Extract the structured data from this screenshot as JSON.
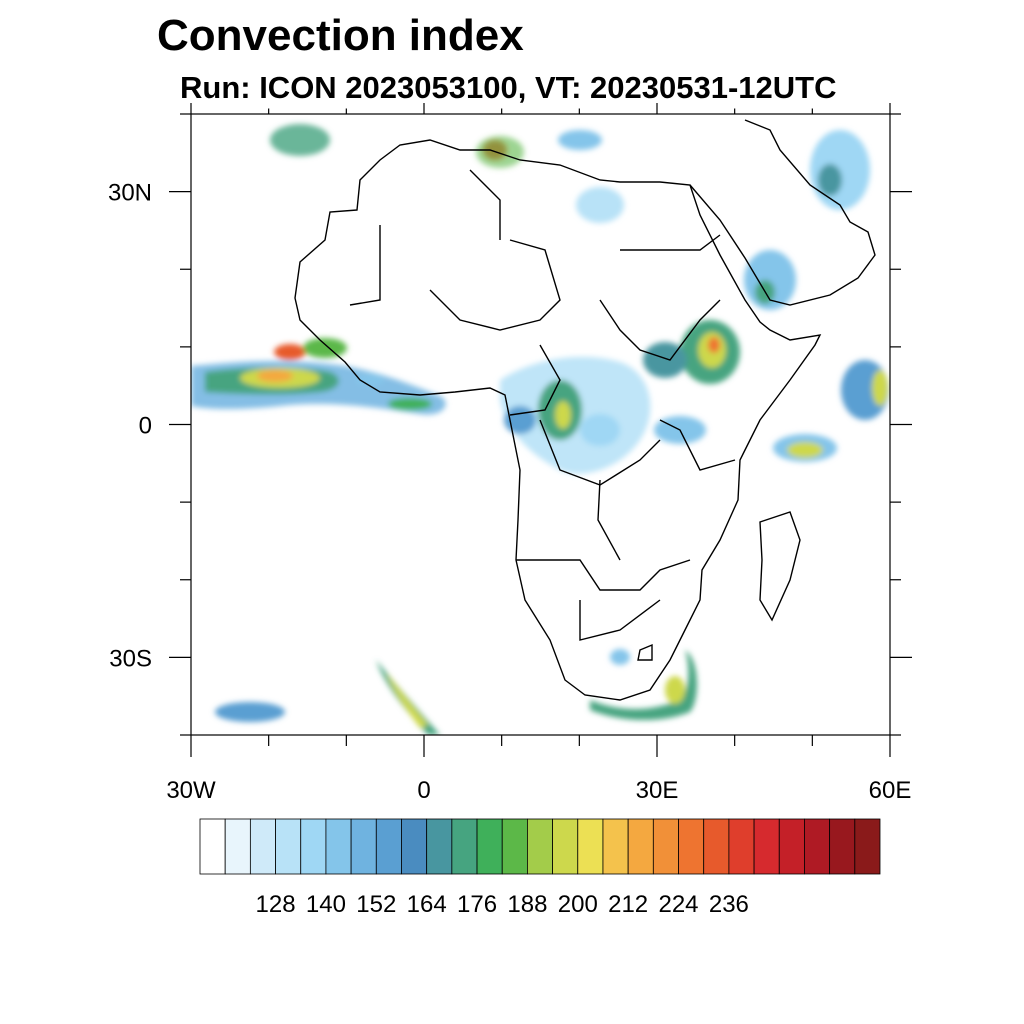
{
  "title": "Convection index",
  "subtitle": "Run: ICON 2023053100,  VT: 20230531-12UTC",
  "map": {
    "lon_range": [
      -30,
      60
    ],
    "lat_range": [
      -40,
      40
    ],
    "lon_tick_labels": [
      {
        "lon": -30,
        "label": "30W"
      },
      {
        "lon": 0,
        "label": "0"
      },
      {
        "lon": 30,
        "label": "30E"
      },
      {
        "lon": 60,
        "label": "60E"
      }
    ],
    "lat_tick_labels": [
      {
        "lat": 30,
        "label": "30N"
      },
      {
        "lat": 0,
        "label": "0"
      },
      {
        "lat": -30,
        "label": "30S"
      }
    ]
  },
  "colorbar": {
    "colors": [
      "#ffffff",
      "#e8f5fc",
      "#cfeaf9",
      "#b8e2f7",
      "#9fd7f4",
      "#84c5ea",
      "#6fb3e0",
      "#5a9fd2",
      "#4a8cc0",
      "#4896a0",
      "#46a480",
      "#3fb05a",
      "#5cb848",
      "#a3cc4a",
      "#cdd84c",
      "#ece054",
      "#f4c24c",
      "#f4a840",
      "#f19038",
      "#ee7430",
      "#e75a2c",
      "#df3e2c",
      "#d62a2e",
      "#c42028",
      "#af1a24",
      "#98181e",
      "#8a1a1a"
    ],
    "labels": [
      "128",
      "140",
      "152",
      "164",
      "176",
      "188",
      "200",
      "212",
      "224",
      "236"
    ]
  }
}
